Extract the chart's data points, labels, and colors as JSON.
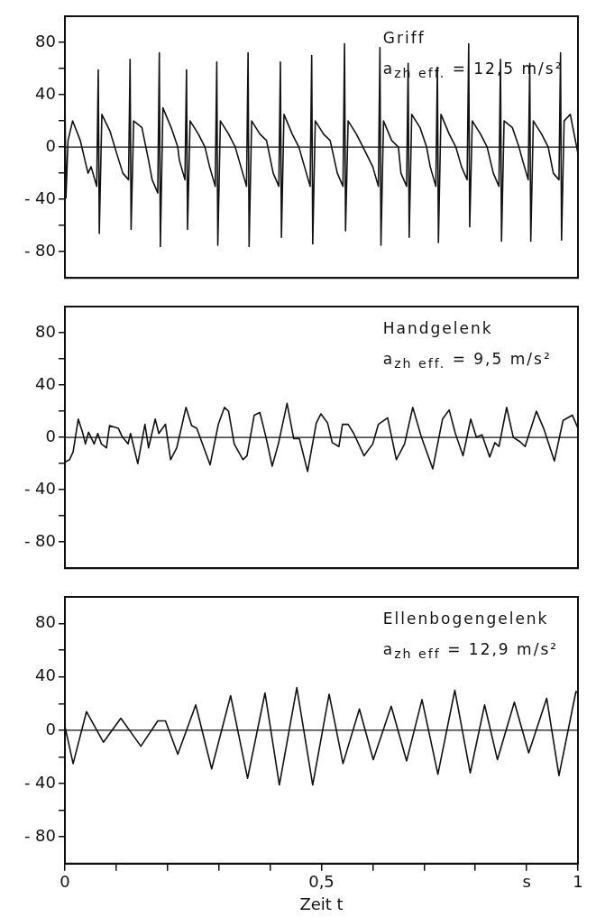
{
  "chart_data": [
    {
      "type": "line",
      "annotations": [
        "Griff",
        "a$_{zh eff.}$ = 12,5 m/s²"
      ],
      "xlim": [
        0,
        1
      ],
      "ylim": [
        -100,
        100
      ],
      "tick_labels": "y",
      "grid": false,
      "legend": false,
      "marker": "none",
      "line_style": "solid",
      "yticks": [
        {
          "value": -80,
          "label": "- 80"
        },
        {
          "value": -60,
          "label": null
        },
        {
          "value": -40,
          "label": "- 40"
        },
        {
          "value": -20,
          "label": null
        },
        0,
        {
          "value": 20,
          "label": null
        },
        40,
        {
          "value": 60,
          "label": null
        },
        80
      ],
      "ref_lines": [
        {
          "axis": "y",
          "value": 0,
          "color": "#111111"
        }
      ],
      "series": [
        {
          "color": "#111111",
          "x": [
            0,
            0.002,
            0.006,
            0.015,
            0.03,
            0.045,
            0.051,
            0.062,
            0.065,
            0.067,
            0.072,
            0.088,
            0.101,
            0.113,
            0.124,
            0.127,
            0.129,
            0.134,
            0.15,
            0.163,
            0.17,
            0.181,
            0.184,
            0.186,
            0.191,
            0.207,
            0.22,
            0.223,
            0.234,
            0.237,
            0.239,
            0.244,
            0.26,
            0.273,
            0.282,
            0.293,
            0.296,
            0.298,
            0.303,
            0.319,
            0.332,
            0.343,
            0.354,
            0.357,
            0.359,
            0.364,
            0.38,
            0.393,
            0.406,
            0.417,
            0.42,
            0.422,
            0.427,
            0.443,
            0.456,
            0.467,
            0.478,
            0.481,
            0.483,
            0.488,
            0.504,
            0.517,
            0.531,
            0.542,
            0.545,
            0.547,
            0.552,
            0.568,
            0.581,
            0.6,
            0.611,
            0.614,
            0.616,
            0.621,
            0.637,
            0.65,
            0.655,
            0.666,
            0.669,
            0.671,
            0.676,
            0.692,
            0.705,
            0.712,
            0.723,
            0.726,
            0.728,
            0.733,
            0.749,
            0.762,
            0.773,
            0.784,
            0.787,
            0.789,
            0.794,
            0.81,
            0.823,
            0.835,
            0.846,
            0.849,
            0.851,
            0.856,
            0.872,
            0.885,
            0.892,
            0.903,
            0.906,
            0.908,
            0.913,
            0.929,
            0.942,
            0.952,
            0.963,
            0.966,
            0.968,
            0.973,
            0.985,
            1
          ],
          "values": [
            41,
            -39,
            5,
            20,
            5,
            -20,
            -15,
            -30,
            59,
            -66,
            25,
            12,
            -5,
            -20,
            -25,
            67,
            -63,
            20,
            15,
            -10,
            -25,
            -35,
            72,
            -76,
            30,
            15,
            0,
            -10,
            -25,
            59,
            -63,
            20,
            10,
            0,
            -15,
            -30,
            65,
            -75,
            20,
            10,
            0,
            -15,
            -30,
            72,
            -76,
            20,
            10,
            5,
            -20,
            -30,
            65,
            -69,
            25,
            10,
            0,
            -15,
            -30,
            70,
            -74,
            20,
            10,
            5,
            -20,
            -30,
            79,
            -64,
            20,
            10,
            0,
            -15,
            -30,
            76,
            -75,
            20,
            5,
            0,
            -20,
            -30,
            64,
            -69,
            25,
            15,
            0,
            -15,
            -30,
            61,
            -73,
            25,
            10,
            0,
            -15,
            -25,
            79,
            -61,
            20,
            10,
            0,
            -20,
            -30,
            67,
            -72,
            20,
            15,
            0,
            -10,
            -25,
            64,
            -72,
            20,
            10,
            0,
            -20,
            -25,
            72,
            -71,
            20,
            25,
            -5
          ]
        }
      ]
    },
    {
      "type": "line",
      "annotations": [
        "Handgelenk",
        "a$_{zh eff.}$ = 9,5 m/s²"
      ],
      "xlim": [
        0,
        1
      ],
      "ylim": [
        -100,
        100
      ],
      "tick_labels": "y",
      "grid": false,
      "legend": false,
      "marker": "none",
      "line_style": "solid",
      "yticks": [
        {
          "value": -80,
          "label": "- 80"
        },
        {
          "value": -60,
          "label": null
        },
        {
          "value": -40,
          "label": "- 40"
        },
        {
          "value": -20,
          "label": null
        },
        0,
        {
          "value": 20,
          "label": null
        },
        40,
        {
          "value": 60,
          "label": null
        },
        80
      ],
      "ref_lines": [
        {
          "axis": "y",
          "value": 0,
          "color": "#111111"
        }
      ],
      "series": [
        {
          "color": "#111111",
          "x": [
            0,
            0.009,
            0.016,
            0.026,
            0.035,
            0.04,
            0.046,
            0.057,
            0.064,
            0.071,
            0.081,
            0.087,
            0.104,
            0.111,
            0.123,
            0.128,
            0.142,
            0.156,
            0.163,
            0.176,
            0.183,
            0.196,
            0.206,
            0.218,
            0.236,
            0.247,
            0.257,
            0.283,
            0.299,
            0.311,
            0.319,
            0.33,
            0.347,
            0.355,
            0.369,
            0.38,
            0.392,
            0.404,
            0.416,
            0.433,
            0.446,
            0.457,
            0.473,
            0.49,
            0.499,
            0.512,
            0.521,
            0.534,
            0.541,
            0.552,
            0.563,
            0.583,
            0.6,
            0.611,
            0.629,
            0.646,
            0.662,
            0.678,
            0.695,
            0.717,
            0.736,
            0.749,
            0.761,
            0.776,
            0.791,
            0.802,
            0.813,
            0.828,
            0.838,
            0.846,
            0.861,
            0.874,
            0.886,
            0.897,
            0.919,
            0.934,
            0.954,
            0.971,
            0.989,
            1
          ],
          "values": [
            -19,
            -17,
            -11,
            14,
            3,
            -5,
            4,
            -5,
            3,
            -5,
            -8,
            9,
            7,
            1,
            -5,
            3,
            -20,
            10,
            -8,
            14,
            3,
            10,
            -17,
            -8,
            23,
            9,
            7,
            -21,
            10,
            23,
            20,
            -5,
            -17,
            -14,
            17,
            19,
            0,
            -22,
            -5,
            26,
            -1,
            -1,
            -26,
            11,
            18,
            11,
            -4,
            -7,
            10,
            10,
            3,
            -14,
            -5,
            10,
            15,
            -17,
            -5,
            23,
            0,
            -24,
            14,
            21,
            3,
            -14,
            14,
            0,
            2,
            -15,
            -4,
            -7,
            23,
            0,
            -3,
            -7,
            20,
            6,
            -18,
            13,
            17,
            7
          ]
        }
      ]
    },
    {
      "type": "line",
      "annotations": [
        "Ellenbogengelenk",
        "a$_{zh eff}$ = 12,9 m/s²"
      ],
      "xlabel": "Zeit t",
      "xlim": [
        0,
        1
      ],
      "ylim": [
        -100,
        100
      ],
      "grid": false,
      "legend": false,
      "marker": "none",
      "line_style": "solid",
      "xticks": [
        0,
        {
          "value": 0.1,
          "label": null
        },
        {
          "value": 0.2,
          "label": null
        },
        {
          "value": 0.3,
          "label": null
        },
        {
          "value": 0.4,
          "label": null
        },
        {
          "value": 0.5,
          "label": "0,5"
        },
        {
          "value": 0.6,
          "label": null
        },
        {
          "value": 0.7,
          "label": null
        },
        {
          "value": 0.8,
          "label": null
        },
        {
          "value": 0.9,
          "label": "s"
        },
        1
      ],
      "yticks": [
        {
          "value": -80,
          "label": "- 80"
        },
        {
          "value": -60,
          "label": null
        },
        {
          "value": -40,
          "label": "- 40"
        },
        {
          "value": -20,
          "label": null
        },
        0,
        {
          "value": 20,
          "label": null
        },
        40,
        {
          "value": 60,
          "label": null
        },
        80
      ],
      "ref_lines": [
        {
          "axis": "y",
          "value": 0,
          "color": "#111111"
        }
      ],
      "series": [
        {
          "color": "#111111",
          "x": [
            0,
            0.016,
            0.042,
            0.075,
            0.109,
            0.148,
            0.181,
            0.196,
            0.22,
            0.255,
            0.286,
            0.323,
            0.356,
            0.39,
            0.418,
            0.452,
            0.483,
            0.515,
            0.542,
            0.574,
            0.601,
            0.636,
            0.666,
            0.696,
            0.727,
            0.76,
            0.79,
            0.818,
            0.843,
            0.876,
            0.904,
            0.939,
            0.963,
            0.996,
            1
          ],
          "values": [
            3,
            -25,
            14,
            -9,
            9,
            -12,
            7,
            7,
            -18,
            19,
            -29,
            26,
            -36,
            28,
            -41,
            32,
            -41,
            27,
            -25,
            16,
            -22,
            18,
            -23,
            23,
            -33,
            30,
            -32,
            19,
            -22,
            21,
            -17,
            24,
            -34,
            29,
            28
          ]
        }
      ]
    }
  ]
}
